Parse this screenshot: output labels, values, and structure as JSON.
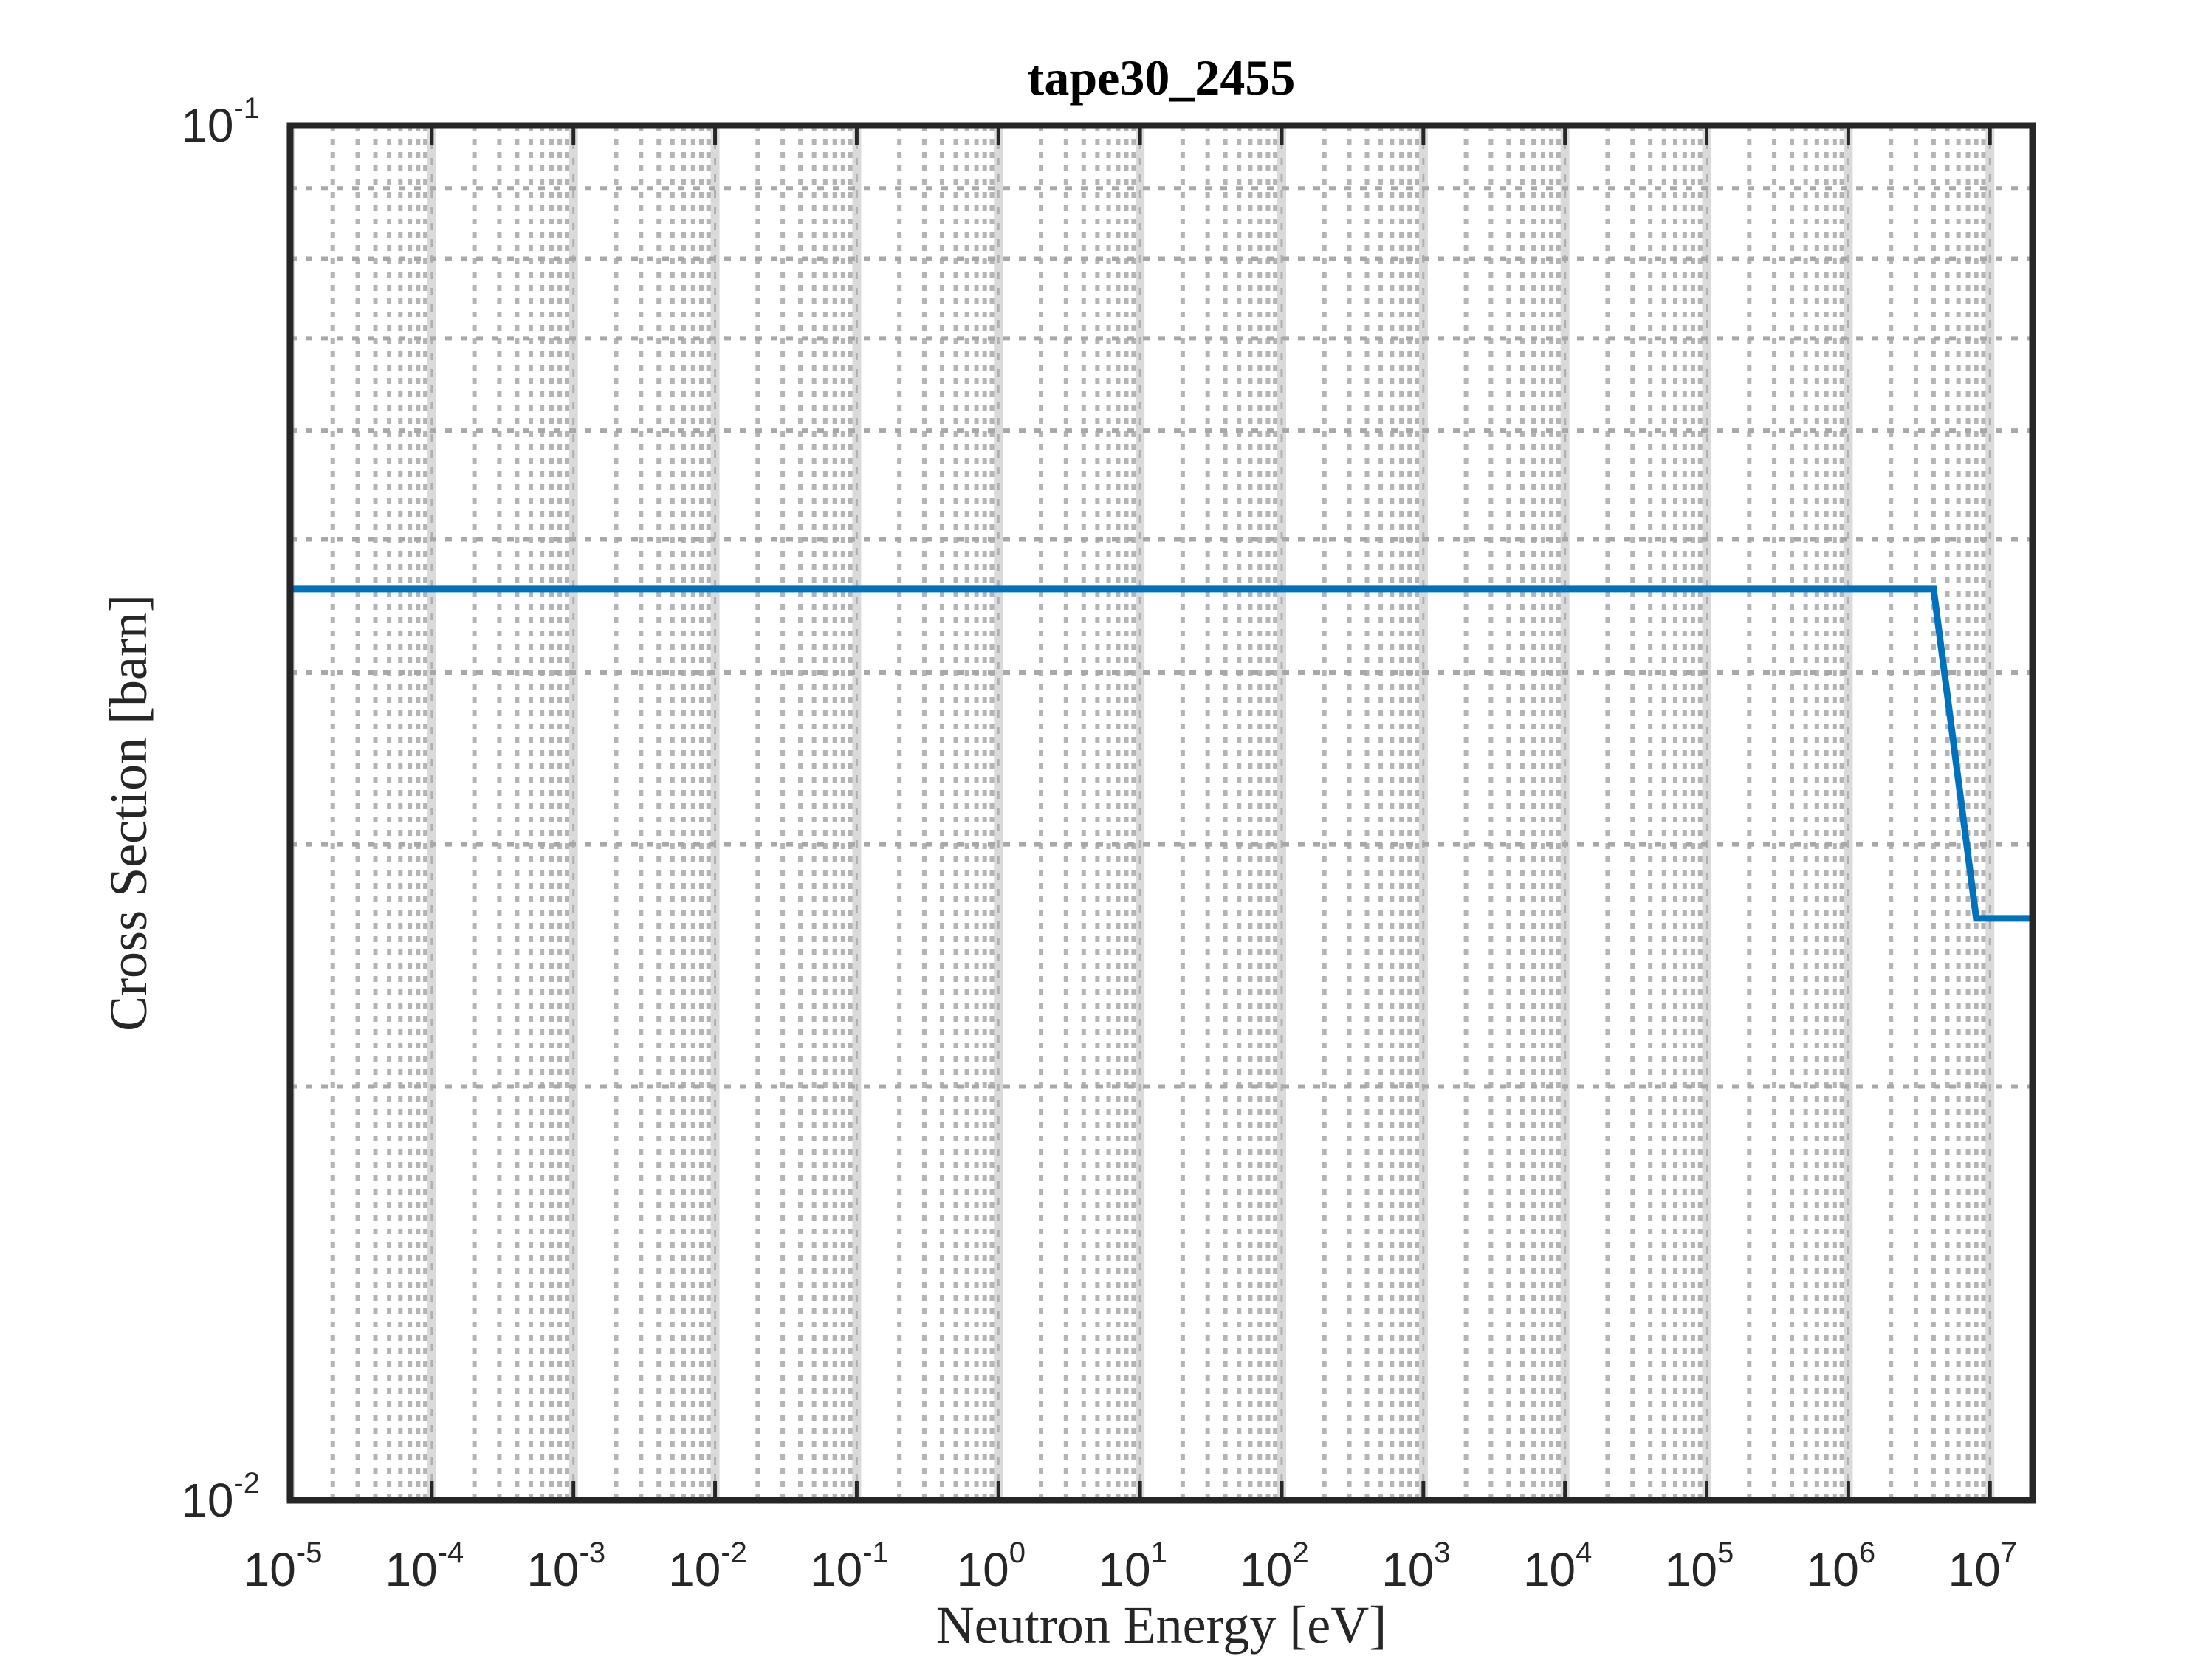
{
  "chart_data": {
    "type": "line",
    "title": "tape30_2455",
    "xlabel": "Neutron Energy [eV]",
    "ylabel": "Cross Section [barn]",
    "xscale": "log",
    "yscale": "log",
    "xlim": [
      1e-05,
      20000000
    ],
    "ylim": [
      0.01,
      0.1
    ],
    "grid": true,
    "minor_grid": true,
    "x_ticks": [
      {
        "base": "10",
        "exp": "-5"
      },
      {
        "base": "10",
        "exp": "-4"
      },
      {
        "base": "10",
        "exp": "-3"
      },
      {
        "base": "10",
        "exp": "-2"
      },
      {
        "base": "10",
        "exp": "-1"
      },
      {
        "base": "10",
        "exp": "0"
      },
      {
        "base": "10",
        "exp": "1"
      },
      {
        "base": "10",
        "exp": "2"
      },
      {
        "base": "10",
        "exp": "3"
      },
      {
        "base": "10",
        "exp": "4"
      },
      {
        "base": "10",
        "exp": "5"
      },
      {
        "base": "10",
        "exp": "6"
      },
      {
        "base": "10",
        "exp": "7"
      }
    ],
    "y_ticks": [
      {
        "base": "10",
        "exp": "-1"
      },
      {
        "base": "10",
        "exp": "-2"
      }
    ],
    "series": [
      {
        "color": "#0072BD",
        "x": [
          1e-05,
          4000000,
          8000000,
          20000000
        ],
        "y": [
          0.046,
          0.046,
          0.0265,
          0.0265
        ]
      }
    ]
  }
}
